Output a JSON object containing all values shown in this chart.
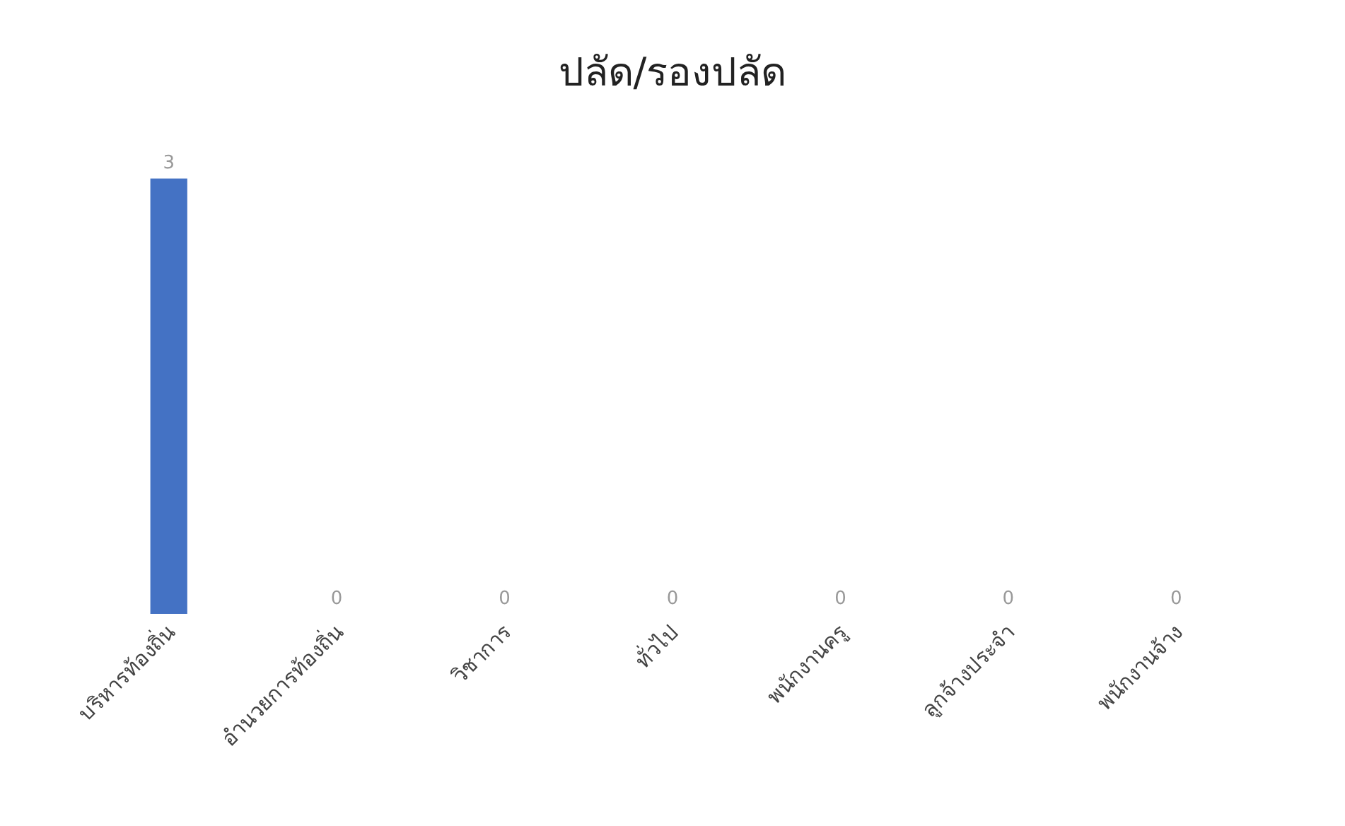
{
  "chart_data": {
    "type": "bar",
    "title": "ปลัด/รองปลัด",
    "categories": [
      "บริหารท้องถิ่น",
      "อำนวยการท้องถิ่น",
      "วิชาการ",
      "ทั่วไป",
      "พนักงานครู",
      "ลูกจ้างประจำ",
      "พนักงานจ้าง"
    ],
    "values": [
      3,
      0,
      0,
      0,
      0,
      0,
      0
    ],
    "color": "#4472c4",
    "data_labels": true
  }
}
